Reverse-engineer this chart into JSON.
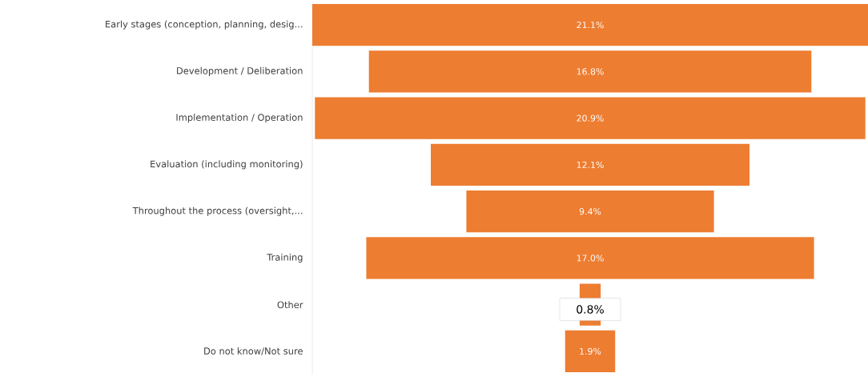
{
  "chart_data": {
    "type": "other",
    "categories": [
      "Early stages (conception, planning, desig...",
      "Development / Deliberation",
      "Implementation / Operation",
      "Evaluation (including monitoring)",
      "Throughout the process (oversight,...",
      "Training",
      "Other",
      "Do not know/Not sure"
    ],
    "values": [
      21.1,
      16.8,
      20.9,
      12.1,
      9.4,
      17.0,
      0.8,
      1.9
    ],
    "value_labels": [
      "21.1%",
      "16.8%",
      "20.9%",
      "12.1%",
      "9.4%",
      "17.0%",
      "0.8%",
      "1.9%"
    ],
    "color": "#ed7d31"
  }
}
